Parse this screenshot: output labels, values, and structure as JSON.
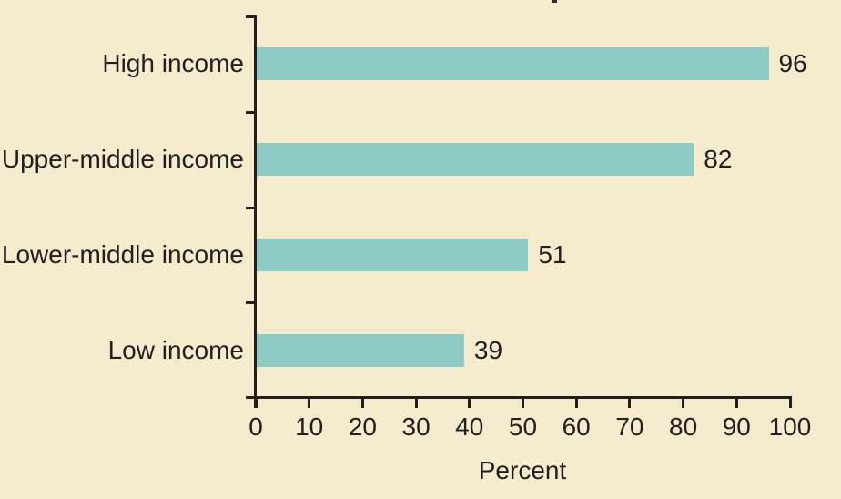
{
  "chart_data": {
    "type": "bar",
    "orientation": "horizontal",
    "title": "",
    "categories": [
      "High income",
      "Upper-middle income",
      "Lower-middle income",
      "Low income"
    ],
    "values": [
      96,
      82,
      51,
      39
    ],
    "value_labels": [
      "96",
      "82",
      "51",
      "39"
    ],
    "xlabel": "Percent",
    "xticks": [
      0,
      10,
      20,
      30,
      40,
      50,
      60,
      70,
      80,
      90,
      100
    ],
    "xtick_labels": [
      "0",
      "10",
      "20",
      "30",
      "40",
      "50",
      "60",
      "70",
      "80",
      "90",
      "100"
    ],
    "xlim": [
      0,
      100
    ],
    "grid": false,
    "legend": false,
    "bar_color": "#8fcbc5",
    "background_color": "#f5ebcd",
    "axis_color": "#231f20",
    "text_color": "#231f20"
  }
}
